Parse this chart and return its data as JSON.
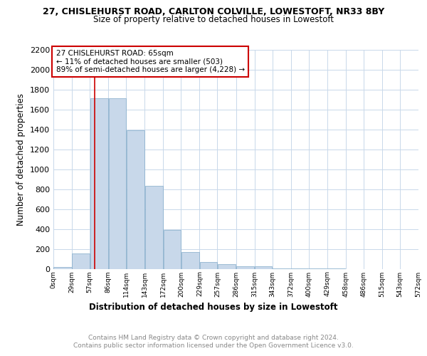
{
  "title1": "27, CHISLEHURST ROAD, CARLTON COLVILLE, LOWESTOFT, NR33 8BY",
  "title2": "Size of property relative to detached houses in Lowestoft",
  "xlabel": "Distribution of detached houses by size in Lowestoft",
  "ylabel": "Number of detached properties",
  "bin_edges": [
    0,
    29,
    57,
    86,
    114,
    143,
    172,
    200,
    229,
    257,
    286,
    315,
    343,
    372,
    400,
    429,
    458,
    486,
    515,
    543,
    572
  ],
  "bar_heights": [
    15,
    155,
    1710,
    1710,
    1395,
    835,
    390,
    165,
    70,
    45,
    25,
    25,
    5,
    5,
    5,
    5,
    0,
    0,
    0,
    0
  ],
  "bar_color": "#c8d8ea",
  "bar_edgecolor": "#80aac8",
  "grid_color": "#c8d8ea",
  "vline_x": 65,
  "vline_color": "#cc0000",
  "annotation_line1": "27 CHISLEHURST ROAD: 65sqm",
  "annotation_line2": "← 11% of detached houses are smaller (503)",
  "annotation_line3": "89% of semi-detached houses are larger (4,228) →",
  "annotation_box_edgecolor": "#cc0000",
  "ylim": [
    0,
    2200
  ],
  "yticks": [
    0,
    200,
    400,
    600,
    800,
    1000,
    1200,
    1400,
    1600,
    1800,
    2000,
    2200
  ],
  "footer1": "Contains HM Land Registry data © Crown copyright and database right 2024.",
  "footer2": "Contains public sector information licensed under the Open Government Licence v3.0."
}
